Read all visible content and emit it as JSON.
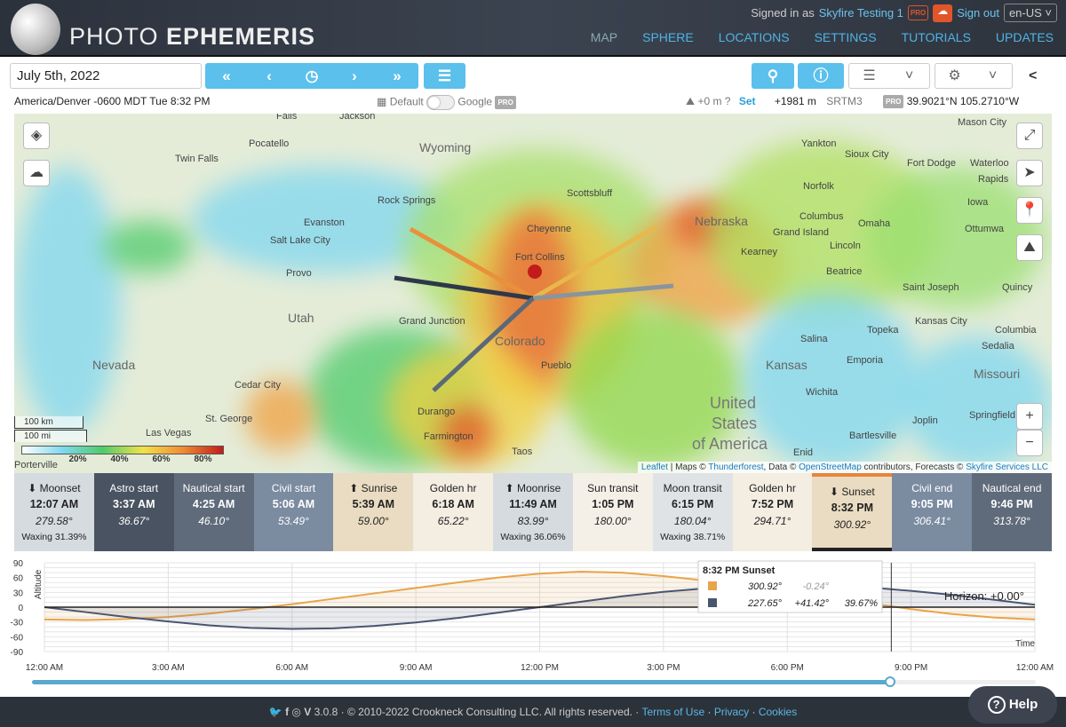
{
  "header": {
    "logo_light": "PHOTO",
    "logo_bold": "EPHEMERIS",
    "signed_in_prefix": "Signed in as",
    "user": "Skyfire Testing 1",
    "pro_badge": "PRO",
    "sign_out": "Sign out",
    "language": "en-US ˅",
    "nav": [
      "MAP",
      "SPHERE",
      "LOCATIONS",
      "SETTINGS",
      "TUTORIALS",
      "UPDATES"
    ]
  },
  "toolbar": {
    "date": "July 5th, 2022",
    "nav_buttons": [
      "«",
      "‹",
      "◷",
      "›",
      "»"
    ],
    "list_icon": "☰",
    "search_icon": "⚲",
    "clock_icon": "ⓘ",
    "layers_icon": "☰",
    "chevron": "˅",
    "gear_icon": "⚙",
    "share_icon": "<"
  },
  "info": {
    "timezone": "America/Denver -0600 MDT Tue 8:32 PM",
    "map_default": "Default",
    "map_google": "Google",
    "pro": "PRO",
    "height": "+0 m",
    "height_help": "?",
    "set": "Set",
    "elevation": "+1981 m",
    "elevation_source": "SRTM3",
    "coords": "39.9021°N 105.2710°W"
  },
  "map": {
    "labels": [
      "Wyoming",
      "Nebraska",
      "Colorado",
      "Utah",
      "Nevada",
      "Kansas",
      "Missouri",
      "United",
      "States",
      "of America",
      "Pocatello",
      "Twin Falls",
      "Rock Springs",
      "Evanston",
      "Salt Lake City",
      "Provo",
      "Grand Junction",
      "Cheyenne",
      "Fort Collins",
      "Scottsbluff",
      "Pueblo",
      "Durango",
      "Farmington",
      "Taos",
      "Cedar City",
      "St. George",
      "Las Vegas",
      "Omaha",
      "Lincoln",
      "Columbus",
      "Grand Island",
      "Kearney",
      "Beatrice",
      "Norfolk",
      "Yankton",
      "Sioux City",
      "Fort Dodge",
      "Topeka",
      "Emporia",
      "Salina",
      "Wichita",
      "Kansas City",
      "Saint Joseph",
      "Columbia",
      "Sedalia",
      "Springfield",
      "Joplin",
      "Bartlesville",
      "Enid",
      "Mason City",
      "Iowa",
      "Ottumwa",
      "Quincy",
      "Waterloo",
      "Rapids",
      "Jackson",
      "Falls",
      "Porterville"
    ],
    "scale": [
      "100 km",
      "100 mi"
    ],
    "legend": [
      "20%",
      "40%",
      "60%",
      "80%"
    ],
    "attribution": {
      "leaflet": "Leaflet",
      "maps": " | Maps © ",
      "thunderforest": "Thunderforest",
      "data": ", Data © ",
      "osm": "OpenStreetMap",
      "contrib": " contributors, Forecasts © ",
      "skyfire": "Skyfire Services LLC"
    },
    "controls": {
      "layers": "◈",
      "cloud": "☁",
      "fullscreen": "⤢",
      "locate": "➤",
      "pin": "📍",
      "terrain": "⛰",
      "zoom_in": "+",
      "zoom_out": "−"
    }
  },
  "events": [
    {
      "label": "⬇ Moonset",
      "time": "12:07 AM",
      "az": "279.58°",
      "extra": "Waxing 31.39%",
      "bg": "#d6dbe0",
      "fg": "#222"
    },
    {
      "label": "Astro start",
      "time": "3:37 AM",
      "az": "36.67°",
      "extra": "",
      "bg": "#4a5361",
      "fg": "#fff"
    },
    {
      "label": "Nautical start",
      "time": "4:25 AM",
      "az": "46.10°",
      "extra": "",
      "bg": "#5f6b7b",
      "fg": "#fff"
    },
    {
      "label": "Civil start",
      "time": "5:06 AM",
      "az": "53.49°",
      "extra": "",
      "bg": "#7b8ba0",
      "fg": "#fff"
    },
    {
      "label": "⬆ Sunrise",
      "time": "5:39 AM",
      "az": "59.00°",
      "extra": "",
      "bg": "#eadcc2",
      "fg": "#222"
    },
    {
      "label": "Golden hr",
      "time": "6:18 AM",
      "az": "65.22°",
      "extra": "",
      "bg": "#f3ede2",
      "fg": "#222"
    },
    {
      "label": "⬆ Moonrise",
      "time": "11:49 AM",
      "az": "83.99°",
      "extra": "Waxing 36.06%",
      "bg": "#d6dbe0",
      "fg": "#222"
    },
    {
      "label": "Sun transit",
      "time": "1:05 PM",
      "az": "180.00°",
      "extra": "",
      "bg": "#f4f0e8",
      "fg": "#222"
    },
    {
      "label": "Moon transit",
      "time": "6:15 PM",
      "az": "180.04°",
      "extra": "Waxing 38.71%",
      "bg": "#e0e3e6",
      "fg": "#222"
    },
    {
      "label": "Golden hr",
      "time": "7:52 PM",
      "az": "294.71°",
      "extra": "",
      "bg": "#f3ede2",
      "fg": "#222"
    },
    {
      "label": "⬇ Sunset",
      "time": "8:32 PM",
      "az": "300.92°",
      "extra": "",
      "bg": "#eadcc2",
      "fg": "#222"
    },
    {
      "label": "Civil end",
      "time": "9:05 PM",
      "az": "306.41°",
      "extra": "",
      "bg": "#7b8ba0",
      "fg": "#fff"
    },
    {
      "label": "Nautical end",
      "time": "9:46 PM",
      "az": "313.78°",
      "extra": "",
      "bg": "#5f6b7b",
      "fg": "#fff"
    }
  ],
  "chart_data": {
    "type": "line",
    "ylabel": "Altitude",
    "xlabel": "Time",
    "ylim": [
      -90,
      90
    ],
    "yticks": [
      "90",
      "60",
      "30",
      "0",
      "-30",
      "-60",
      "-90"
    ],
    "xticks": [
      "12:00 AM",
      "3:00 AM",
      "6:00 AM",
      "9:00 AM",
      "12:00 PM",
      "3:00 PM",
      "6:00 PM",
      "9:00 PM",
      "12:00 AM"
    ],
    "x_hours": [
      0,
      1,
      2,
      3,
      4,
      5,
      6,
      7,
      8,
      9,
      10,
      11,
      12,
      13,
      14,
      15,
      16,
      17,
      18,
      19,
      20,
      21,
      22,
      23,
      24
    ],
    "series": [
      {
        "color": "#e8a44a",
        "values": [
          -25,
          -26,
          -24,
          -20,
          -13,
          -4,
          6,
          17,
          28,
          39,
          50,
          60,
          68,
          72,
          70,
          63,
          54,
          43,
          32,
          20,
          8,
          -4,
          -14,
          -21,
          -25
        ]
      },
      {
        "color": "#4a5670",
        "values": [
          0,
          -10,
          -20,
          -29,
          -37,
          -42,
          -44,
          -43,
          -38,
          -31,
          -22,
          -11,
          0,
          11,
          22,
          31,
          38,
          43,
          45,
          44,
          40,
          33,
          25,
          15,
          5
        ]
      }
    ],
    "horizon_label": "Horizon: +0.00°",
    "tooltip": {
      "title": "8:32 PM Sunset",
      "sun": [
        "300.92°",
        "-0.24°"
      ],
      "moon": [
        "227.65°",
        "+41.42°",
        "39.67%"
      ]
    }
  },
  "timeline": {
    "progress": 0.855
  },
  "footer": {
    "version": "3.0.8 · © 2010-2022 Crookneck Consulting LLC. All rights reserved. ·",
    "terms": "Terms of Use",
    "privacy": "Privacy",
    "cookies": "Cookies",
    "sep": "·",
    "social": [
      "🐦",
      "f",
      "◎",
      "V"
    ],
    "help": "Help",
    "help_icon": "?"
  }
}
